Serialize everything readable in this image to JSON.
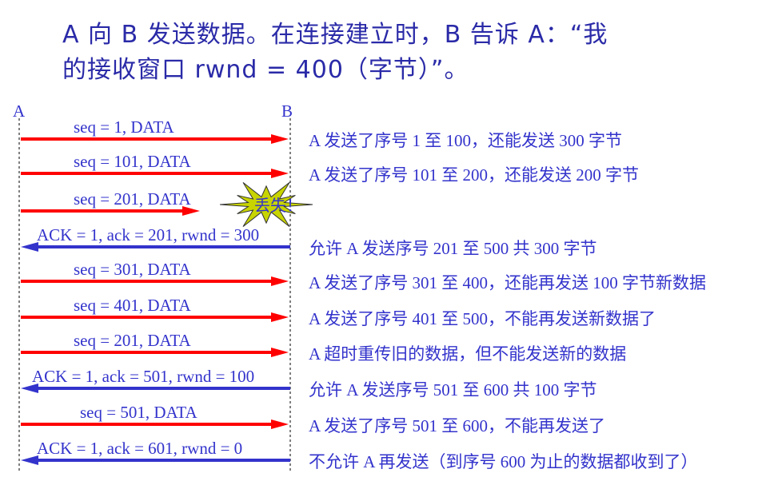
{
  "title": {
    "line1": "A 向 B 发送数据。在连接建立时，B 告诉 A：“我",
    "line2": "的接收窗口 rwnd = 400（字节）”。"
  },
  "hosts": {
    "a": "A",
    "b": "B"
  },
  "lost_label": "丢失！",
  "colors": {
    "data_arrow": "#ff0000",
    "ack_arrow": "#3333cc",
    "text": "#3333cc",
    "burst": "#c8d400"
  },
  "messages": [
    {
      "label": "seq = 1, DATA",
      "direction": "A→B",
      "note": "A 发送了序号 1 至 100，还能发送 300 字节"
    },
    {
      "label": "seq = 101, DATA",
      "direction": "A→B",
      "note": "A 发送了序号 101 至 200，还能发送 200 字节"
    },
    {
      "label": "seq = 201, DATA",
      "direction": "A→B",
      "lost": true,
      "note": ""
    },
    {
      "label": "ACK = 1, ack = 201, rwnd = 300",
      "direction": "B→A",
      "note": "允许 A 发送序号 201 至 500  共 300 字节"
    },
    {
      "label": "seq = 301, DATA",
      "direction": "A→B",
      "note": "A 发送了序号 301 至 400，还能再发送 100 字节新数据"
    },
    {
      "label": "seq = 401, DATA",
      "direction": "A→B",
      "note": "A 发送了序号 401 至 500，不能再发送新数据了"
    },
    {
      "label": "seq = 201, DATA",
      "direction": "A→B",
      "note": "A 超时重传旧的数据，但不能发送新的数据"
    },
    {
      "label": "ACK = 1, ack = 501, rwnd = 100",
      "direction": "B→A",
      "note": "允许 A 发送序号 501 至 600 共 100 字节"
    },
    {
      "label": "seq = 501, DATA",
      "direction": "A→B",
      "note": "A 发送了序号 501 至 600，不能再发送了"
    },
    {
      "label": "ACK = 1, ack = 601, rwnd = 0",
      "direction": "B→A",
      "note": "不允许 A 再发送（到序号 600 为止的数据都收到了）"
    }
  ]
}
